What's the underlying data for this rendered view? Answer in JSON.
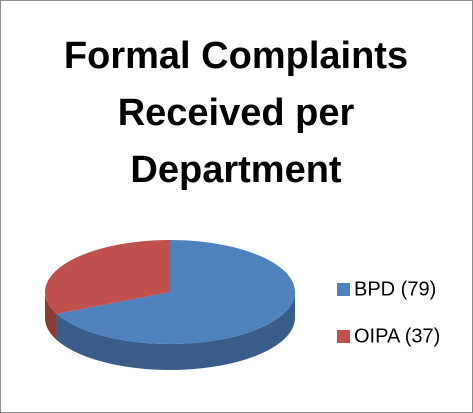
{
  "chart_data": {
    "type": "pie",
    "title": "Formal Complaints Received per Department",
    "categories": [
      "BPD (79)",
      "OIPA (37)"
    ],
    "values": [
      79,
      37
    ],
    "colors": [
      "#4f81bd",
      "#c0504d"
    ],
    "legend": "right"
  }
}
